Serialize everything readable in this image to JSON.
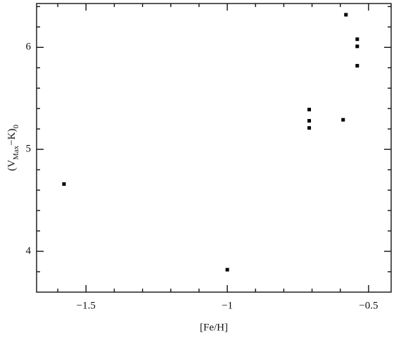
{
  "chart_data": {
    "type": "scatter",
    "xlabel": "[Fe/H]",
    "ylabel": [
      "(V",
      "Max",
      "−K)",
      "0"
    ],
    "x": [
      -1.578,
      -1.0,
      -0.71,
      -0.71,
      -0.71,
      -0.59,
      -0.58,
      -0.54,
      -0.54,
      -0.54
    ],
    "values": [
      4.66,
      3.82,
      5.39,
      5.28,
      5.21,
      5.29,
      6.32,
      6.08,
      6.01,
      5.82
    ],
    "color": "#000000",
    "xlim": [
      -1.675,
      -0.42
    ],
    "ylim": [
      3.6,
      6.43
    ],
    "xticks": [
      {
        "value": -1.5,
        "label": "−1.5"
      },
      {
        "value": -1,
        "label": "−1"
      },
      {
        "value": -0.5,
        "label": "−0.5"
      }
    ],
    "yticks": [
      4,
      5,
      6
    ],
    "xminorticks": [
      -1.6,
      -1.4,
      -1.3,
      -1.2,
      -1.1,
      -0.9,
      -0.8,
      -0.7,
      -0.6
    ],
    "yminorticks": [
      3.8,
      4.2,
      4.4,
      4.6,
      4.8,
      5.2,
      5.4,
      5.6,
      5.8,
      6.2,
      6.4
    ],
    "grid": false
  }
}
